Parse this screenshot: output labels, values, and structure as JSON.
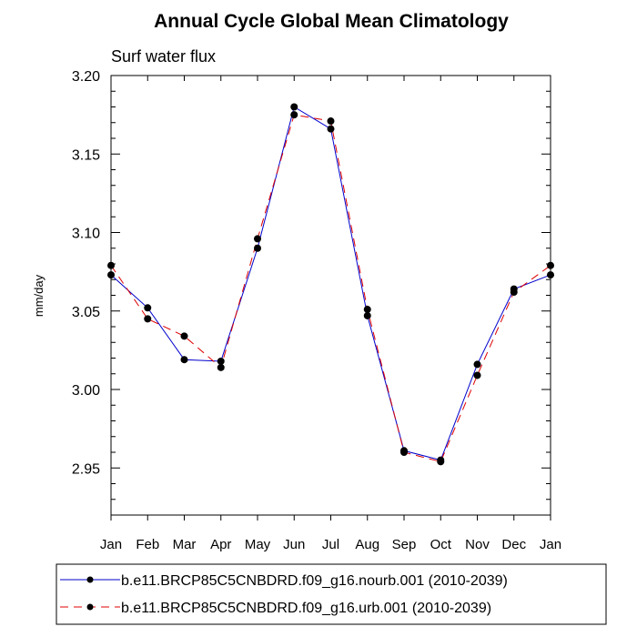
{
  "chart_data": {
    "type": "line",
    "title": "Annual Cycle Global Mean Climatology",
    "subtitle": "Surf water flux",
    "ylabel": "mm/day",
    "xlabel": "",
    "categories": [
      "Jan",
      "Feb",
      "Mar",
      "Apr",
      "May",
      "Jun",
      "Jul",
      "Aug",
      "Sep",
      "Oct",
      "Nov",
      "Dec",
      "Jan"
    ],
    "yticks": [
      "3.20",
      "3.15",
      "3.10",
      "3.05",
      "3.00",
      "2.95"
    ],
    "ytick_values": [
      3.2,
      3.15,
      3.1,
      3.05,
      3.0,
      2.95
    ],
    "ylim": [
      2.92,
      3.2
    ],
    "grid": false,
    "legend_position": "bottom",
    "series": [
      {
        "name": "b.e11.BRCP85C5CNBDRD.f09_g16.nourb.001 (2010-2039)",
        "color": "#0000cc",
        "dash": "solid",
        "values": [
          3.073,
          3.052,
          3.019,
          3.018,
          3.09,
          3.18,
          3.166,
          3.047,
          2.961,
          2.955,
          3.016,
          3.064,
          3.073
        ]
      },
      {
        "name": "b.e11.BRCP85C5CNBDRD.f09_g16.urb.001 (2010-2039)",
        "color": "#dd0000",
        "dash": "dashed",
        "values": [
          3.079,
          3.045,
          3.034,
          3.014,
          3.096,
          3.175,
          3.171,
          3.051,
          2.96,
          2.954,
          3.009,
          3.062,
          3.079
        ]
      }
    ]
  }
}
